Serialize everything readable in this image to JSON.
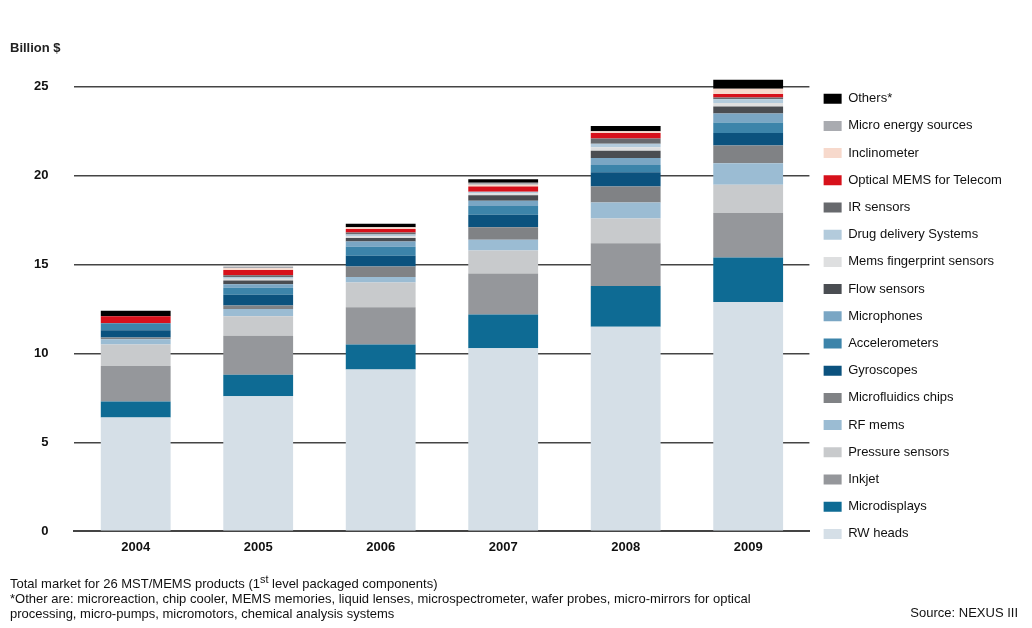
{
  "chart_data": {
    "type": "bar",
    "stacked": true,
    "ylabel": "Billion $",
    "legend": "right",
    "grid": "y",
    "categories": [
      "2004",
      "2005",
      "2006",
      "2007",
      "2008",
      "2009"
    ],
    "ylim": [
      0,
      25.5
    ],
    "yticks": [
      0,
      5,
      10,
      15,
      20,
      25
    ],
    "series": [
      {
        "name": "RW heads",
        "color": "#d5dfe7",
        "values": [
          6.4,
          7.6,
          9.1,
          10.3,
          11.5,
          12.9
        ]
      },
      {
        "name": "Microdisplays",
        "color": "#0e6b94",
        "values": [
          0.9,
          1.2,
          1.4,
          1.9,
          2.3,
          2.5
        ]
      },
      {
        "name": "Inkjet",
        "color": "#95979b",
        "values": [
          2.0,
          2.2,
          2.1,
          2.3,
          2.4,
          2.5
        ]
      },
      {
        "name": "Pressure sensors",
        "color": "#c8cacc",
        "values": [
          1.2,
          1.1,
          1.4,
          1.3,
          1.4,
          1.6
        ]
      },
      {
        "name": "RF mems",
        "color": "#9bbcd3",
        "values": [
          0.3,
          0.4,
          0.3,
          0.6,
          0.9,
          1.2
        ]
      },
      {
        "name": "Microfluidics chips",
        "color": "#808285",
        "values": [
          0.1,
          0.2,
          0.6,
          0.7,
          0.9,
          1.0
        ]
      },
      {
        "name": "Gyroscopes",
        "color": "#0b527e",
        "values": [
          0.4,
          0.6,
          0.6,
          0.7,
          0.8,
          0.7
        ]
      },
      {
        "name": "Accelerometers",
        "color": "#3c84aa",
        "values": [
          0.4,
          0.4,
          0.5,
          0.5,
          0.4,
          0.6
        ]
      },
      {
        "name": "Microphones",
        "color": "#7aa6c4",
        "values": [
          0,
          0.2,
          0.3,
          0.3,
          0.4,
          0.5
        ]
      },
      {
        "name": "Flow sensors",
        "color": "#4a4d52",
        "values": [
          0,
          0.2,
          0.2,
          0.3,
          0.4,
          0.4
        ]
      },
      {
        "name": "Mems fingerprint sensors",
        "color": "#dedfe0",
        "values": [
          0,
          0.1,
          0.1,
          0.1,
          0.2,
          0.2
        ]
      },
      {
        "name": "Drug delivery Systems",
        "color": "#b3cbdc",
        "values": [
          0,
          0.1,
          0.1,
          0.1,
          0.2,
          0.2
        ]
      },
      {
        "name": "IR sensors",
        "color": "#67696d",
        "values": [
          0,
          0.1,
          0.1,
          0,
          0.3,
          0.1
        ]
      },
      {
        "name": "Optical MEMS for Telecom",
        "color": "#d7111b",
        "values": [
          0.4,
          0.3,
          0.2,
          0.3,
          0.3,
          0.2
        ]
      },
      {
        "name": "Inclinometer",
        "color": "#f7d9cc",
        "values": [
          0,
          0.1,
          0.1,
          0.1,
          0.1,
          0.3
        ]
      },
      {
        "name": "Micro energy sources",
        "color": "#a9abb0",
        "values": [
          0,
          0.1,
          0,
          0.1,
          0,
          0
        ]
      },
      {
        "name": "Others*",
        "color": "#000000",
        "values": [
          0.3,
          0,
          0.2,
          0.2,
          0.3,
          0.5
        ]
      }
    ],
    "annotations": [
      "Total market for 26 MST/MEMS products (1$^{st}$ level packaged components)",
      "*Other are: microreaction, chip cooler, MEMS memories, liquid lenses, microspectrometer, wafer probes, micro-mirrors for optical processing, micro-pumps, micromotors, chemical analysis systems",
      "Source: NEXUS III"
    ]
  }
}
